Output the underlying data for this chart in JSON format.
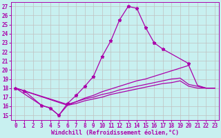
{
  "xlabel": "Windchill (Refroidissement éolien,°C)",
  "bg_color": "#c8f0f0",
  "line_color": "#aa00aa",
  "grid_color": "#c0c0c0",
  "xlim": [
    -0.5,
    23.5
  ],
  "ylim": [
    14.5,
    27.5
  ],
  "xticks": [
    0,
    1,
    2,
    3,
    4,
    5,
    6,
    7,
    8,
    9,
    10,
    11,
    12,
    13,
    14,
    15,
    16,
    17,
    18,
    19,
    20,
    21,
    22,
    23
  ],
  "yticks": [
    15,
    16,
    17,
    18,
    19,
    20,
    21,
    22,
    23,
    24,
    25,
    26,
    27
  ],
  "line1_x": [
    0,
    1,
    3,
    4,
    5,
    6,
    7,
    8,
    9,
    10,
    11,
    12,
    13,
    14,
    15,
    16,
    17,
    20
  ],
  "line1_y": [
    18.0,
    17.7,
    16.1,
    15.8,
    15.0,
    16.3,
    17.2,
    18.2,
    19.3,
    21.5,
    23.2,
    25.5,
    27.0,
    26.8,
    24.7,
    23.0,
    22.3,
    20.7
  ],
  "line2_x": [
    0,
    3,
    4,
    5,
    6,
    7,
    8,
    9,
    10,
    11,
    12,
    13,
    14,
    15,
    16,
    17,
    18,
    19,
    20,
    21,
    22,
    23
  ],
  "line2_y": [
    18.0,
    16.1,
    15.8,
    15.0,
    16.1,
    16.5,
    16.9,
    17.2,
    17.6,
    17.9,
    18.2,
    18.5,
    18.8,
    19.0,
    19.3,
    19.6,
    19.9,
    20.2,
    20.5,
    18.3,
    18.0,
    18.0
  ],
  "line3_x": [
    0,
    6,
    7,
    8,
    9,
    10,
    11,
    12,
    13,
    14,
    15,
    16,
    17,
    18,
    19,
    20,
    21,
    22,
    23
  ],
  "line3_y": [
    18.0,
    16.2,
    16.5,
    16.8,
    17.0,
    17.3,
    17.5,
    17.8,
    18.0,
    18.2,
    18.4,
    18.6,
    18.8,
    19.0,
    19.1,
    18.4,
    18.2,
    18.0,
    18.0
  ],
  "line4_x": [
    0,
    6,
    7,
    8,
    9,
    10,
    11,
    12,
    13,
    14,
    15,
    16,
    17,
    18,
    19,
    20,
    21,
    22,
    23
  ],
  "line4_y": [
    18.0,
    16.1,
    16.3,
    16.6,
    16.8,
    17.0,
    17.3,
    17.5,
    17.7,
    17.9,
    18.1,
    18.3,
    18.5,
    18.6,
    18.8,
    18.2,
    18.0,
    18.0,
    18.0
  ],
  "tick_fontsize": 5.5,
  "xlabel_fontsize": 6,
  "marker": "*",
  "markersize": 3.5,
  "linewidth": 0.9
}
